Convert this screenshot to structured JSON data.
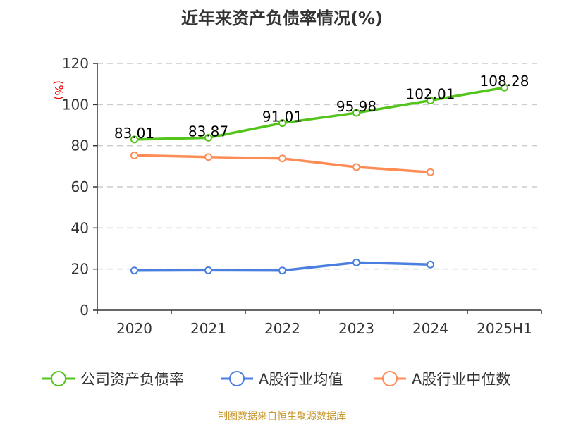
{
  "chart_data": {
    "type": "line",
    "title": "近年来资产负债率情况(%)",
    "ylabel": "(%)",
    "xlabel": "",
    "categories": [
      "2020",
      "2021",
      "2022",
      "2023",
      "2024",
      "2025H1"
    ],
    "ylim": [
      0,
      120
    ],
    "yticks": [
      0,
      20,
      40,
      60,
      80,
      100,
      120
    ],
    "grid": true,
    "legend_position": "bottom",
    "series": [
      {
        "name": "公司资产负债率",
        "color": "#52c41a",
        "values": [
          83.01,
          83.87,
          91.01,
          95.98,
          102.01,
          108.28
        ],
        "labels": [
          "83.01",
          "83.87",
          "91.01",
          "95.98",
          "102.01",
          "108.28"
        ]
      },
      {
        "name": "A股行业均值",
        "color": "#4a7fe0",
        "values": [
          19.3,
          19.4,
          19.3,
          23.2,
          22.2,
          null
        ]
      },
      {
        "name": "A股行业中位数",
        "color": "#ff8c55",
        "values": [
          75.3,
          74.5,
          73.8,
          69.6,
          67.1,
          null
        ]
      }
    ],
    "source": "制图数据来自恒生聚源数据库"
  }
}
